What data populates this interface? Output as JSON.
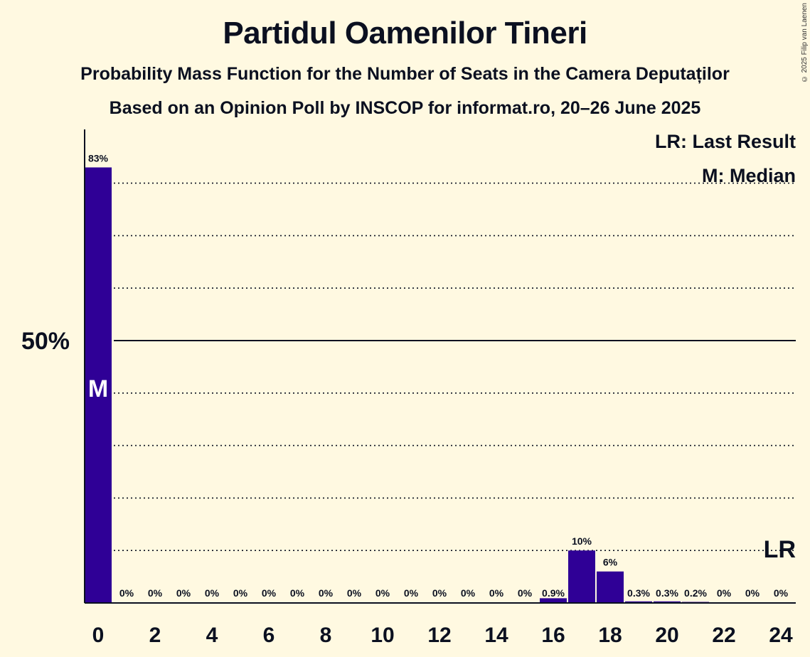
{
  "title": "Partidul Oamenilor Tineri",
  "subtitle": "Probability Mass Function for the Number of Seats in the Camera Deputaților",
  "subtitle2": "Based on an Opinion Poll by INSCOP for informat.ro, 20–26 June 2025",
  "copyright": "© 2025 Filip van Laenen",
  "legend": {
    "last_result": "LR: Last Result",
    "median": "M: Median"
  },
  "colors": {
    "bar": "#2f0096",
    "background": "#fff9e1",
    "text": "#0b1020"
  },
  "chart_data": {
    "type": "bar",
    "title": "Partidul Oamenilor Tineri",
    "subtitle": "Probability Mass Function for the Number of Seats in the Camera Deputaților",
    "xlabel": "",
    "ylabel": "",
    "x": [
      0,
      1,
      2,
      3,
      4,
      5,
      6,
      7,
      8,
      9,
      10,
      11,
      12,
      13,
      14,
      15,
      16,
      17,
      18,
      19,
      20,
      21,
      22,
      23,
      24
    ],
    "values": [
      83,
      0,
      0,
      0,
      0,
      0,
      0,
      0,
      0,
      0,
      0,
      0,
      0,
      0,
      0,
      0,
      0.9,
      10,
      6,
      0.3,
      0.3,
      0.2,
      0,
      0,
      0
    ],
    "labels": [
      "83%",
      "0%",
      "0%",
      "0%",
      "0%",
      "0%",
      "0%",
      "0%",
      "0%",
      "0%",
      "0%",
      "0%",
      "0%",
      "0%",
      "0%",
      "0%",
      "0.9%",
      "10%",
      "6%",
      "0.3%",
      "0.3%",
      "0.2%",
      "0%",
      "0%",
      "0%"
    ],
    "x_ticks": [
      "0",
      "2",
      "4",
      "6",
      "8",
      "10",
      "12",
      "14",
      "16",
      "18",
      "20",
      "22",
      "24"
    ],
    "y_tick_label": "50%",
    "y_tick_value": 50,
    "ylim": [
      0,
      90
    ],
    "grid": "dotted every 10%",
    "median_seat": 0,
    "median_label": "M",
    "last_result_seat": 24,
    "last_result_value": 10,
    "last_result_label": "LR"
  }
}
